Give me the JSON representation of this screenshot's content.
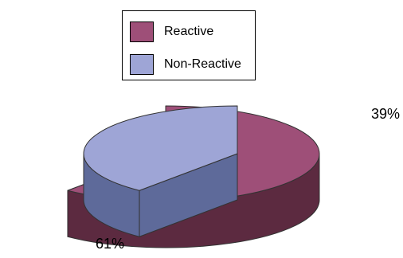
{
  "chart_data": {
    "type": "pie",
    "style": "3d-exploded",
    "categories": [
      "Reactive",
      "Non-Reactive"
    ],
    "values": [
      61,
      39
    ],
    "data_labels": [
      "61%",
      "39%"
    ],
    "colors": {
      "Reactive": {
        "top": "#9e4f78",
        "side": "#5c2a40"
      },
      "Non-Reactive": {
        "top": "#9ea5d6",
        "side": "#5e6a9a"
      }
    },
    "legend": {
      "position": "top-center",
      "entries": [
        "Reactive",
        "Non-Reactive"
      ]
    },
    "title": "",
    "xlabel": "",
    "ylabel": ""
  }
}
